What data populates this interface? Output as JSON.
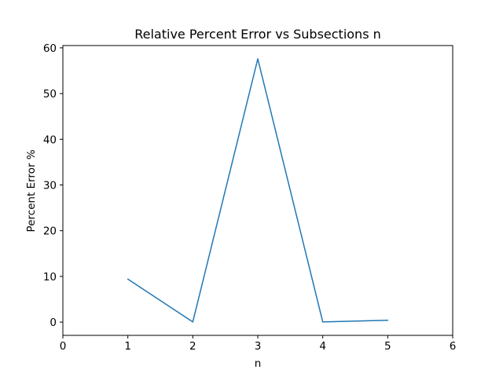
{
  "chart_data": {
    "type": "line",
    "title": "Relative Percent Error vs Subsections n",
    "xlabel": "n",
    "ylabel": "Percent Error %",
    "xlim": [
      0,
      6
    ],
    "ylim": [
      -2.9,
      60.5
    ],
    "x_ticks": [
      "0",
      "1",
      "2",
      "3",
      "4",
      "5",
      "6"
    ],
    "y_ticks": [
      "0",
      "10",
      "20",
      "30",
      "40",
      "50",
      "60"
    ],
    "grid": false,
    "series": [
      {
        "x": [
          1,
          2,
          3,
          4,
          5
        ],
        "values": [
          9.4,
          0.05,
          57.6,
          0.05,
          0.4
        ]
      }
    ],
    "line_color": "#1f77b4"
  }
}
